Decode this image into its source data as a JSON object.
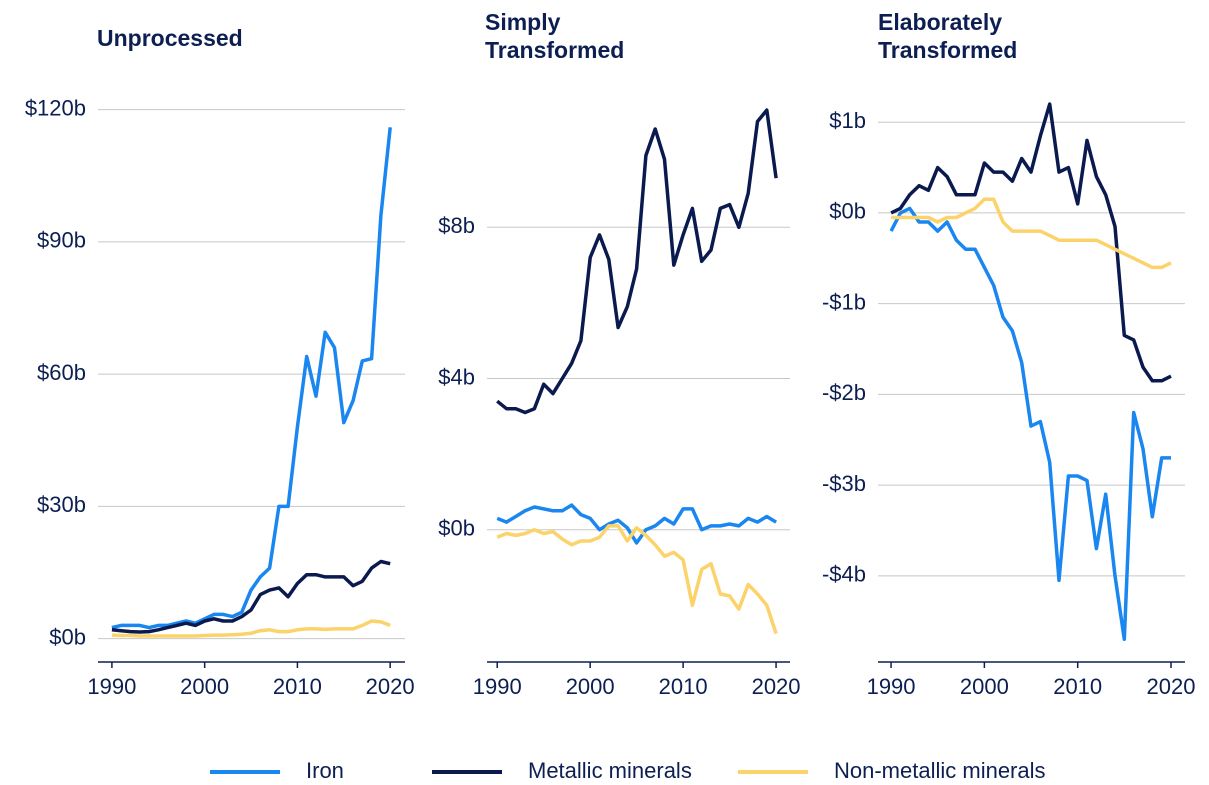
{
  "chart_data": [
    {
      "type": "line",
      "title": "Unprocessed",
      "x": [
        1990,
        1991,
        1992,
        1993,
        1994,
        1995,
        1996,
        1997,
        1998,
        1999,
        2000,
        2001,
        2002,
        2003,
        2004,
        2005,
        2006,
        2007,
        2008,
        2009,
        2010,
        2011,
        2012,
        2013,
        2014,
        2015,
        2016,
        2017,
        2018,
        2019,
        2020
      ],
      "series": [
        {
          "name": "Iron",
          "color": "#1a86f0",
          "values": [
            2.5,
            3,
            3,
            3,
            2.5,
            3,
            3,
            3.5,
            4,
            3.5,
            4.5,
            5.5,
            5.5,
            5,
            6,
            11,
            14,
            16,
            30,
            30,
            48,
            64,
            55,
            69.5,
            66,
            49,
            54,
            63,
            63.5,
            96,
            116
          ]
        },
        {
          "name": "Metallic minerals",
          "color": "#0a1a4f",
          "values": [
            2,
            1.8,
            1.6,
            1.5,
            1.6,
            2,
            2.5,
            3,
            3.5,
            3,
            4,
            4.5,
            4,
            4,
            5,
            6.5,
            10,
            11,
            11.5,
            9.5,
            12.5,
            14.5,
            14.5,
            14,
            14,
            14,
            12,
            13,
            16,
            17.5,
            17
          ]
        },
        {
          "name": "Non-metallic minerals",
          "color": "#fbd36a",
          "values": [
            0.8,
            0.7,
            0.7,
            0.6,
            0.6,
            0.6,
            0.6,
            0.6,
            0.6,
            0.6,
            0.7,
            0.8,
            0.8,
            0.9,
            1,
            1.2,
            1.8,
            2,
            1.6,
            1.6,
            2,
            2.2,
            2.2,
            2.1,
            2.2,
            2.2,
            2.2,
            3,
            4,
            3.8,
            3
          ]
        }
      ],
      "xlim": [
        1988.5,
        2021.6
      ],
      "xticks": [
        1990,
        2000,
        2010,
        2020
      ],
      "ylim": [
        -5.3,
        124
      ],
      "yticks": [
        {
          "value": 0,
          "label": "$0b"
        },
        {
          "value": 30,
          "label": "$30b"
        },
        {
          "value": 60,
          "label": "$60b"
        },
        {
          "value": 90,
          "label": "$90b"
        },
        {
          "value": 120,
          "label": "$120b"
        }
      ],
      "grid": true
    },
    {
      "type": "line",
      "title": "Simply Transformed",
      "x": [
        1990,
        1991,
        1992,
        1993,
        1994,
        1995,
        1996,
        1997,
        1998,
        1999,
        2000,
        2001,
        2002,
        2003,
        2004,
        2005,
        2006,
        2007,
        2008,
        2009,
        2010,
        2011,
        2012,
        2013,
        2014,
        2015,
        2016,
        2017,
        2018,
        2019,
        2020
      ],
      "series": [
        {
          "name": "Iron",
          "color": "#1a86f0",
          "values": [
            0.3,
            0.2,
            0.35,
            0.5,
            0.6,
            0.55,
            0.5,
            0.5,
            0.65,
            0.4,
            0.3,
            0,
            0.15,
            0.25,
            0.05,
            -0.35,
            0,
            0.1,
            0.3,
            0.15,
            0.55,
            0.55,
            0,
            0.1,
            0.1,
            0.15,
            0.1,
            0.3,
            0.2,
            0.35,
            0.2
          ]
        },
        {
          "name": "Metallic minerals",
          "color": "#0a1a4f",
          "values": [
            3.4,
            3.2,
            3.2,
            3.1,
            3.2,
            3.85,
            3.6,
            4,
            4.4,
            5,
            7.2,
            7.8,
            7.15,
            5.35,
            5.9,
            6.9,
            9.9,
            10.6,
            9.8,
            7,
            7.8,
            8.5,
            7.1,
            7.4,
            8.5,
            8.6,
            8,
            8.9,
            10.8,
            11.1,
            9.3
          ]
        },
        {
          "name": "Non-metallic minerals",
          "color": "#fbd36a",
          "values": [
            -0.2,
            -0.1,
            -0.15,
            -0.1,
            0,
            -0.1,
            -0.05,
            -0.25,
            -0.4,
            -0.3,
            -0.3,
            -0.2,
            0.1,
            0.1,
            -0.3,
            0.05,
            -0.15,
            -0.4,
            -0.7,
            -0.6,
            -0.8,
            -2,
            -1.05,
            -0.9,
            -1.7,
            -1.75,
            -2.1,
            -1.45,
            -1.7,
            -2,
            -2.75
          ]
        }
      ],
      "xlim": [
        1988.9,
        2021.5
      ],
      "xticks": [
        1990,
        2000,
        2010,
        2020
      ],
      "ylim": [
        -3.5,
        11.5
      ],
      "yticks": [
        {
          "value": 0,
          "label": "$0b"
        },
        {
          "value": 4,
          "label": "$4b"
        },
        {
          "value": 8,
          "label": "$8b"
        }
      ],
      "grid": true
    },
    {
      "type": "line",
      "title": "Elaborately Transformed",
      "x": [
        1990,
        1991,
        1992,
        1993,
        1994,
        1995,
        1996,
        1997,
        1998,
        1999,
        2000,
        2001,
        2002,
        2003,
        2004,
        2005,
        2006,
        2007,
        2008,
        2009,
        2010,
        2011,
        2012,
        2013,
        2014,
        2015,
        2016,
        2017,
        2018,
        2019,
        2020
      ],
      "series": [
        {
          "name": "Iron",
          "color": "#1a86f0",
          "values": [
            -0.2,
            0,
            0.05,
            -0.1,
            -0.1,
            -0.2,
            -0.1,
            -0.3,
            -0.4,
            -0.4,
            -0.6,
            -0.8,
            -1.15,
            -1.3,
            -1.65,
            -2.35,
            -2.3,
            -2.75,
            -4.05,
            -2.9,
            -2.9,
            -2.95,
            -3.7,
            -3.1,
            -4,
            -4.7,
            -2.2,
            -2.6,
            -3.35,
            -2.7,
            -2.7
          ]
        },
        {
          "name": "Metallic minerals",
          "color": "#0a1a4f",
          "values": [
            0,
            0.05,
            0.2,
            0.3,
            0.25,
            0.5,
            0.4,
            0.2,
            0.2,
            0.2,
            0.55,
            0.45,
            0.45,
            0.35,
            0.6,
            0.45,
            0.85,
            1.2,
            0.45,
            0.5,
            0.1,
            0.8,
            0.4,
            0.2,
            -0.15,
            -1.35,
            -1.4,
            -1.7,
            -1.85,
            -1.85,
            -1.8
          ]
        },
        {
          "name": "Non-metallic minerals",
          "color": "#fbd36a",
          "values": [
            -0.05,
            -0.05,
            -0.05,
            -0.05,
            -0.05,
            -0.1,
            -0.05,
            -0.05,
            0,
            0.05,
            0.15,
            0.15,
            -0.1,
            -0.2,
            -0.2,
            -0.2,
            -0.2,
            -0.25,
            -0.3,
            -0.3,
            -0.3,
            -0.3,
            -0.3,
            -0.35,
            -0.4,
            -0.45,
            -0.5,
            -0.55,
            -0.6,
            -0.6,
            -0.55
          ]
        }
      ],
      "xlim": [
        1988.6,
        2021.5
      ],
      "xticks": [
        1990,
        2000,
        2010,
        2020
      ],
      "ylim": [
        -4.95,
        1.3
      ],
      "yticks": [
        {
          "value": 1,
          "label": "$1b"
        },
        {
          "value": 0,
          "label": "$0b"
        },
        {
          "value": -1,
          "label": "-$1b"
        },
        {
          "value": -2,
          "label": "-$2b"
        },
        {
          "value": -3,
          "label": "-$3b"
        },
        {
          "value": -4,
          "label": "-$4b"
        }
      ],
      "grid": true
    }
  ]
}
